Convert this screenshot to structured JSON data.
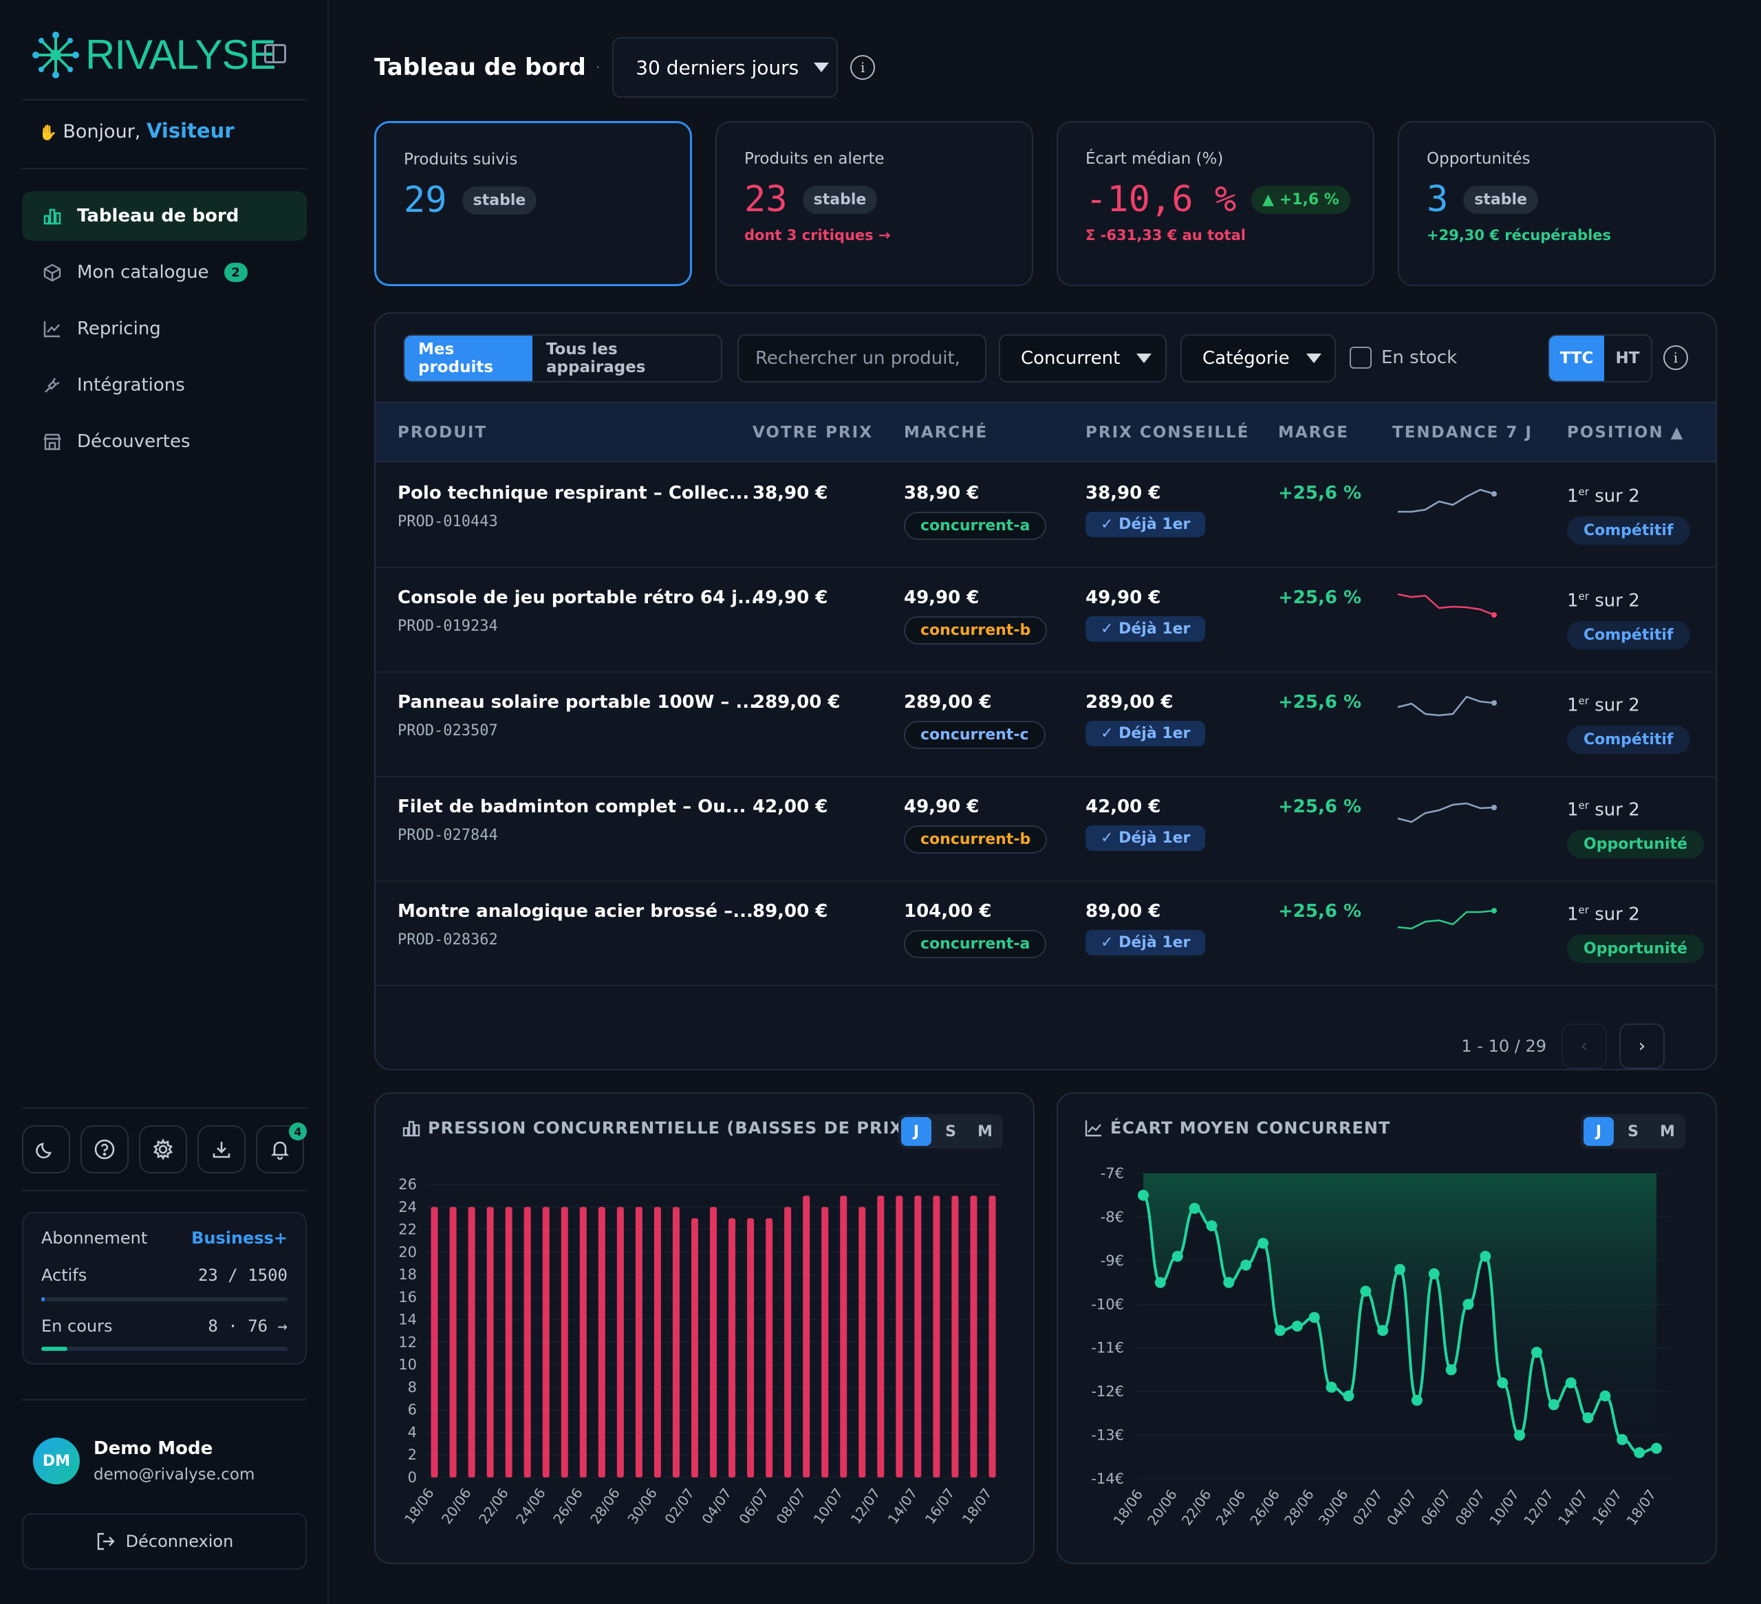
{
  "app": {
    "brand": "RIVALYSE",
    "greeting": "Bonjour,",
    "user_short": "Visiteur"
  },
  "nav": [
    {
      "label": "Tableau de bord",
      "icon": "bar-chart-icon",
      "active": true
    },
    {
      "label": "Mon catalogue",
      "icon": "box-icon",
      "badge": "2"
    },
    {
      "label": "Repricing",
      "icon": "line-chart-icon"
    },
    {
      "label": "Intégrations",
      "icon": "plug-icon"
    },
    {
      "label": "Découvertes",
      "icon": "store-icon"
    }
  ],
  "notif_count": "4",
  "subscription": {
    "label": "Abonnement",
    "plan": "Business+",
    "actifs_label": "Actifs",
    "actifs_value": "23 / 1500",
    "actifs_progress": 0.015,
    "encours_label": "En cours",
    "encours_value": "8 · 76 →",
    "encours_progress": 0.105
  },
  "user": {
    "initials": "DM",
    "name": "Demo Mode",
    "email": "demo@rivalyse.com",
    "logout": "Déconnexion"
  },
  "header": {
    "title": "Tableau de bord",
    "range": "30 derniers jours"
  },
  "kpis": [
    {
      "label": "Produits suivis",
      "value": "29",
      "pill": "stable",
      "sub": "",
      "color": "#3aa8f2"
    },
    {
      "label": "Produits en alerte",
      "value": "23",
      "pill": "stable",
      "sub": "dont 3 critiques →",
      "color": "#f0406a"
    },
    {
      "label": "Écart médian (%)",
      "value": "-10,6 %",
      "pill": "▲ +1,6 %",
      "sub": "Σ -631,33 € au total",
      "color": "#f0406a"
    },
    {
      "label": "Opportunités",
      "value": "3",
      "pill": "stable",
      "sub": "+29,30 € récupérables",
      "color": "#3aa8f2"
    }
  ],
  "filters": {
    "tab_mine": "Mes produits",
    "tab_all": "Tous les appairages",
    "search_placeholder": "Rechercher un produit,",
    "competitor": "Concurrent",
    "category": "Catégorie",
    "in_stock": "En stock",
    "ttc": "TTC",
    "ht": "HT"
  },
  "table": {
    "headers": [
      "PRODUIT",
      "VOTRE PRIX",
      "MARCHÉ",
      "PRIX CONSEILLÉ",
      "MARGE",
      "TENDANCE 7 J",
      "POSITION ▲"
    ],
    "rows": [
      {
        "name": "Polo technique respirant – Collec...",
        "sku": "PROD-010443",
        "price": "38,90 €",
        "market": "38,90 €",
        "competitor": "concurrent-a",
        "comp_color": "#2ecb8a",
        "advised": "38,90 €",
        "deja": "✓ Déjà 1er",
        "marge": "+25,6 %",
        "trend": [
          40,
          40,
          37,
          25,
          30,
          18,
          8,
          14
        ],
        "trend_color": "#8fa3bf",
        "rank": "1",
        "rank_sup": "er",
        "rank_of": "sur 2",
        "status": "Compétitif"
      },
      {
        "name": "Console de jeu portable rétro 64 j...",
        "sku": "PROD-019234",
        "price": "49,90 €",
        "market": "49,90 €",
        "competitor": "concurrent-b",
        "comp_color": "#f5a524",
        "advised": "49,90 €",
        "deja": "✓ Déjà 1er",
        "marge": "+25,6 %",
        "trend": [
          8,
          12,
          10,
          28,
          26,
          27,
          30,
          38
        ],
        "trend_color": "#f0406a",
        "rank": "1",
        "rank_sup": "er",
        "rank_of": "sur 2",
        "status": "Compétitif"
      },
      {
        "name": "Panneau solaire portable 100W – ...",
        "sku": "PROD-023507",
        "price": "289,00 €",
        "market": "289,00 €",
        "competitor": "concurrent-c",
        "comp_color": "#7fb4ff",
        "advised": "289,00 €",
        "deja": "✓ Déjà 1er",
        "marge": "+25,6 %",
        "trend": [
          20,
          15,
          30,
          32,
          30,
          5,
          12,
          14
        ],
        "trend_color": "#8fa3bf",
        "rank": "1",
        "rank_sup": "er",
        "rank_of": "sur 2",
        "status": "Compétitif"
      },
      {
        "name": "Filet de badminton complet – Ou...",
        "sku": "PROD-027844",
        "price": "42,00 €",
        "market": "49,90 €",
        "competitor": "concurrent-b",
        "comp_color": "#f5a524",
        "advised": "42,00 €",
        "deja": "✓ Déjà 1er",
        "marge": "+25,6 %",
        "trend": [
          30,
          35,
          22,
          18,
          10,
          8,
          15,
          14
        ],
        "trend_color": "#8fa3bf",
        "rank": "1",
        "rank_sup": "er",
        "rank_of": "sur 2",
        "status": "Opportunité"
      },
      {
        "name": "Montre analogique acier brossé –...",
        "sku": "PROD-028362",
        "price": "89,00 €",
        "market": "104,00 €",
        "competitor": "concurrent-a",
        "comp_color": "#2ecb8a",
        "advised": "89,00 €",
        "deja": "✓ Déjà 1er",
        "marge": "+25,6 %",
        "trend": [
          36,
          38,
          28,
          26,
          32,
          14,
          14,
          12
        ],
        "trend_color": "#2ecb8a",
        "rank": "1",
        "rank_sup": "er",
        "rank_of": "sur 2",
        "status": "Opportunité"
      }
    ],
    "pagination": "1 - 10 / 29"
  },
  "charts_ui": {
    "j": "J",
    "s": "S",
    "m": "M"
  },
  "chart_data": [
    {
      "type": "bar",
      "title": "PRESSION CONCURRENTIELLE (BAISSES DE PRIX)",
      "ylim": [
        0,
        26
      ],
      "yticks": [
        0,
        2,
        4,
        6,
        8,
        10,
        12,
        14,
        16,
        18,
        20,
        22,
        24,
        26
      ],
      "categories": [
        "18/06",
        "19/06",
        "20/06",
        "21/06",
        "22/06",
        "23/06",
        "24/06",
        "25/06",
        "26/06",
        "27/06",
        "28/06",
        "29/06",
        "30/06",
        "01/07",
        "02/07",
        "03/07",
        "04/07",
        "05/07",
        "06/07",
        "07/07",
        "08/07",
        "09/07",
        "10/07",
        "11/07",
        "12/07",
        "13/07",
        "14/07",
        "15/07",
        "16/07",
        "17/07",
        "18/07"
      ],
      "xticks": [
        "18/06",
        "20/06",
        "22/06",
        "24/06",
        "26/06",
        "28/06",
        "30/06",
        "02/07",
        "04/07",
        "06/07",
        "08/07",
        "10/07",
        "12/07",
        "14/07",
        "16/07",
        "18/07"
      ],
      "values": [
        24,
        24,
        24,
        24,
        24,
        24,
        24,
        24,
        24,
        24,
        24,
        24,
        24,
        24,
        23,
        24,
        23,
        23,
        23,
        24,
        25,
        24,
        25,
        24,
        25,
        25,
        25,
        25,
        25,
        25,
        25
      ],
      "color": "#e0345f"
    },
    {
      "type": "area",
      "title": "ÉCART MOYEN CONCURRENT",
      "ylim": [
        -14,
        -7
      ],
      "yticks": [
        "-7€",
        "-8€",
        "-9€",
        "-10€",
        "-11€",
        "-12€",
        "-13€",
        "-14€"
      ],
      "xticks": [
        "18/06",
        "20/06",
        "22/06",
        "24/06",
        "26/06",
        "28/06",
        "30/06",
        "02/07",
        "04/07",
        "06/07",
        "08/07",
        "10/07",
        "12/07",
        "14/07",
        "16/07",
        "18/07"
      ],
      "values": [
        -7.5,
        -9.5,
        -8.9,
        -7.8,
        -8.2,
        -9.5,
        -9.1,
        -8.6,
        -10.6,
        -10.5,
        -10.3,
        -11.9,
        -12.1,
        -9.7,
        -10.6,
        -9.2,
        -12.2,
        -9.3,
        -11.5,
        -10.0,
        -8.9,
        -11.8,
        -13.0,
        -11.1,
        -12.3,
        -11.8,
        -12.6,
        -12.1,
        -13.1,
        -13.4,
        -13.3
      ],
      "color": "#20d59e"
    }
  ]
}
